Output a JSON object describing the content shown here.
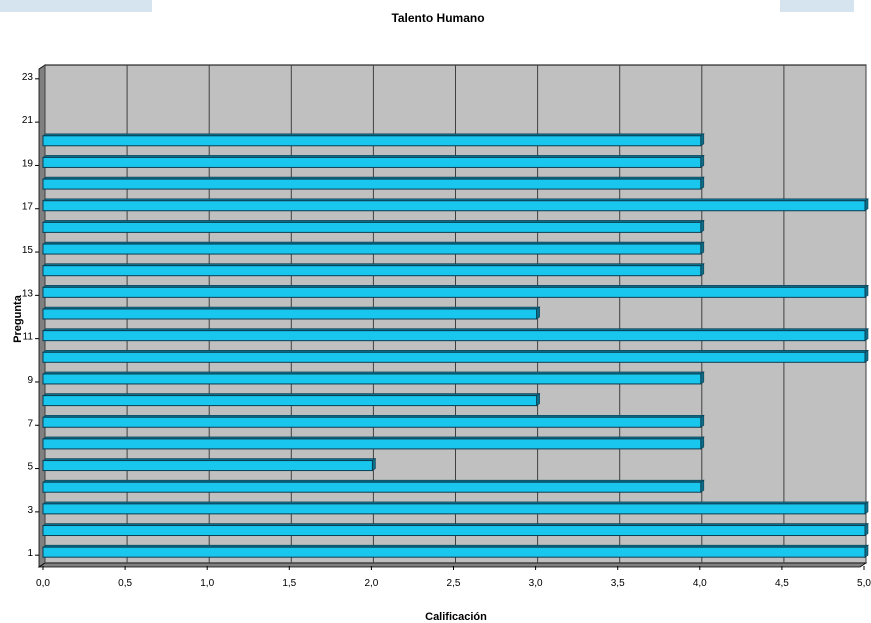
{
  "colors": {
    "bar_fill": "#19c6ee",
    "bar_edge": "#0b3d52",
    "bar_depth": "#0e6f8a",
    "plot_background": "#c0c0c0",
    "plot_wall": "#808080",
    "gridline": "#404040",
    "corner_decoration": "#d6e4ef"
  },
  "chart_data": {
    "type": "bar",
    "orientation": "horizontal",
    "style": "3d",
    "title": "Talento Humano",
    "xlabel": "Calificación",
    "ylabel": "Pregunta",
    "xlim": [
      0,
      5
    ],
    "ylim": [
      1,
      23
    ],
    "grid": true,
    "legend": "none",
    "xticks": [
      "0,0",
      "0,5",
      "1,0",
      "1,5",
      "2,0",
      "2,5",
      "3,0",
      "3,5",
      "4,0",
      "4,5",
      "5,0"
    ],
    "yticks": [
      "1",
      "3",
      "5",
      "7",
      "9",
      "11",
      "13",
      "15",
      "17",
      "19",
      "21",
      "23"
    ],
    "categories": [
      1,
      2,
      3,
      4,
      5,
      6,
      7,
      8,
      9,
      10,
      11,
      12,
      13,
      14,
      15,
      16,
      17,
      18,
      19,
      20
    ],
    "values": [
      5,
      5,
      5,
      4,
      2,
      4,
      4,
      3,
      4,
      5,
      5,
      3,
      5,
      4,
      4,
      4,
      5,
      4,
      4,
      4
    ]
  }
}
